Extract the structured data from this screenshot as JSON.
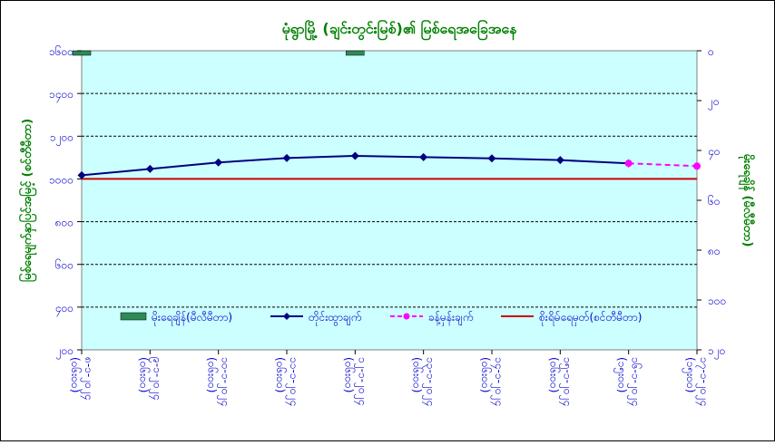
{
  "chart_data": {
    "type": "line",
    "title": "မုံရွာမြို့ (ချင်းတွင်းမြစ်)၏ မြစ်ရေအခြေအနေ",
    "ylabel_left": "မြစ်ရေမျက်နှာပြင်အမြင့် (စင်တီမီတာ)",
    "ylabel_right": "မိုးရေချိန် (မီလီမီတာ)",
    "y_left": {
      "min": 200,
      "max": 1600,
      "step": 200,
      "tick_labels": [
        "၂၀၀",
        "၄၀၀",
        "၆၀၀",
        "၈၀၀",
        "၁၀၀၀",
        "၁၂၀၀",
        "၁၄၀၀",
        "၁၆၀၀"
      ]
    },
    "y_right": {
      "min": 0,
      "max": 120,
      "step": 20,
      "inverted": true,
      "tick_labels": [
        "၀",
        "၂၀",
        "၄၀",
        "၆၀",
        "၈၀",
        "၁၀၀",
        "၁၂၀"
      ]
    },
    "categories": [
      "၈-၁-၂၀၂၄ (၀၆း၀၀)",
      "၉-၁-၂၀၂၄ (၀၆း၀၀)",
      "၁၀-၁-၂၀၂၄ (၀၆း၀၀)",
      "၁၁-၁-၂၀၂၄ (၀၆း၀၀)",
      "၁၂-၁-၂၀၂၄ (၀၆း၀၀)",
      "၁၃-၁-၂၀၂၄ (၀၆း၀၀)",
      "၁၄-၁-၂၀၂၄ (၀၆း၀၀)",
      "၁၅-၁-၂၀၂၄ (၀၆း၀၀)",
      "၁၆-၁-၂၀၂၄ (၁၅း၀၀)",
      "၁၇-၁-၂၀၂၄ (၁၅း၀၀)"
    ],
    "series": [
      {
        "name": "မိုးရေချိန်(မီလီမီတာ)",
        "kind": "bar",
        "axis": "right",
        "color": "#2e8b57",
        "values": [
          1,
          null,
          null,
          null,
          1,
          null,
          null,
          null,
          null,
          null
        ]
      },
      {
        "name": "တိုင်းထွာချက်",
        "kind": "line",
        "axis": "left",
        "color": "#000080",
        "marker": "diamond",
        "values": [
          1017,
          1047,
          1077,
          1098,
          1108,
          1102,
          1096,
          1088,
          1073,
          null
        ]
      },
      {
        "name": "ခန့်မှန်းချက်",
        "kind": "line",
        "axis": "left",
        "color": "#ff00ff",
        "marker": "circle",
        "dash": true,
        "values": [
          null,
          null,
          null,
          null,
          null,
          null,
          null,
          null,
          1073,
          1060
        ]
      },
      {
        "name": "စိုးရိမ်ရေမှတ်(စင်တီမီတာ)",
        "kind": "hline",
        "axis": "left",
        "color": "#cc0000",
        "value": 1000
      }
    ],
    "grid": true,
    "legend_position": "bottom-inside",
    "colors": {
      "plot_bg": "#ccffff",
      "text": "#0000cc",
      "title": "#008000",
      "axis_title": "#008000"
    }
  }
}
